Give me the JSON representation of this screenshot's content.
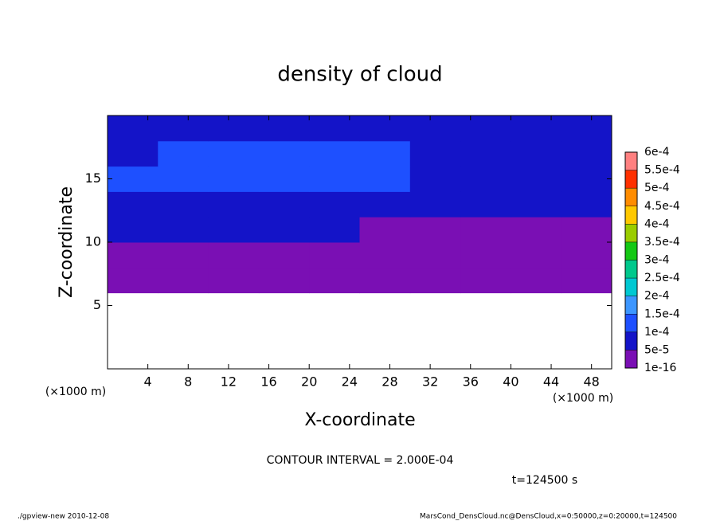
{
  "chart_data": {
    "type": "contour",
    "title": "density of cloud",
    "xlabel": "X-coordinate",
    "ylabel": "Z-coordinate",
    "x_unit": "(×1000 m)",
    "xlim": [
      0,
      50
    ],
    "ylim": [
      0,
      20
    ],
    "xticks": [
      4,
      8,
      12,
      16,
      20,
      24,
      28,
      32,
      36,
      40,
      44,
      48
    ],
    "yticks": [
      5,
      10,
      15
    ],
    "x": [
      2.5,
      7.5,
      12.5,
      17.5,
      22.5,
      27.5,
      32.5,
      37.5,
      42.5,
      47.5
    ],
    "z": [
      1,
      3,
      5,
      7,
      9,
      11,
      13,
      15,
      17,
      19
    ],
    "values": [
      [
        null,
        null,
        null,
        null,
        null,
        null,
        null,
        null,
        null,
        null
      ],
      [
        null,
        null,
        null,
        null,
        null,
        null,
        null,
        null,
        null,
        null
      ],
      [
        null,
        null,
        null,
        null,
        null,
        null,
        null,
        null,
        null,
        null
      ],
      [
        2e-05,
        2e-05,
        2e-05,
        2e-05,
        2e-05,
        2e-05,
        2e-05,
        2e-05,
        2e-05,
        2e-05
      ],
      [
        2e-05,
        2e-05,
        3e-05,
        3e-05,
        2e-05,
        2e-05,
        2e-05,
        2e-05,
        2e-05,
        2e-05
      ],
      [
        6e-05,
        6e-05,
        6e-05,
        7e-05,
        6e-05,
        4e-05,
        3e-05,
        2e-05,
        2e-05,
        2e-05
      ],
      [
        8e-05,
        7e-05,
        7e-05,
        8e-05,
        8e-05,
        7e-05,
        6e-05,
        6e-05,
        6e-05,
        6e-05
      ],
      [
        0.00011,
        0.00012,
        0.00012,
        0.00012,
        0.00012,
        0.00012,
        7e-05,
        6e-05,
        7e-05,
        6e-05
      ],
      [
        7e-05,
        0.00012,
        0.00012,
        0.00012,
        0.00012,
        0.00012,
        9e-05,
        8e-05,
        7e-05,
        6e-05
      ],
      [
        6e-05,
        6e-05,
        8e-05,
        8e-05,
        7e-05,
        6e-05,
        6e-05,
        6e-05,
        6e-05,
        6e-05
      ]
    ],
    "levels": [
      {
        "value": 1e-16,
        "label": "1e-16"
      },
      {
        "value": 5e-05,
        "label": "5e-5"
      },
      {
        "value": 0.0001,
        "label": "1e-4"
      },
      {
        "value": 0.00015,
        "label": "1.5e-4"
      },
      {
        "value": 0.0002,
        "label": "2e-4"
      },
      {
        "value": 0.00025,
        "label": "2.5e-4"
      },
      {
        "value": 0.0003,
        "label": "3e-4"
      },
      {
        "value": 0.00035,
        "label": "3.5e-4"
      },
      {
        "value": 0.0004,
        "label": "4e-4"
      },
      {
        "value": 0.00045,
        "label": "4.5e-4"
      },
      {
        "value": 0.0005,
        "label": "5e-4"
      },
      {
        "value": 0.00055,
        "label": "5.5e-4"
      },
      {
        "value": 0.0006,
        "label": "6e-4"
      }
    ],
    "colors": [
      "#7a0fb4",
      "#1414c8",
      "#1e50ff",
      "#3c96ff",
      "#00c8d2",
      "#00c88c",
      "#14c814",
      "#9acd00",
      "#ffc800",
      "#ff8c00",
      "#ff3000",
      "#ff8080"
    ],
    "contour_interval": "CONTOUR INTERVAL = 2.000E-04",
    "time_label": "t=124500 s",
    "footer_left": "./gpview-new  2010-12-08",
    "footer_right": "MarsCond_DensCloud.nc@DensCloud,x=0:50000,z=0:20000,t=124500"
  }
}
